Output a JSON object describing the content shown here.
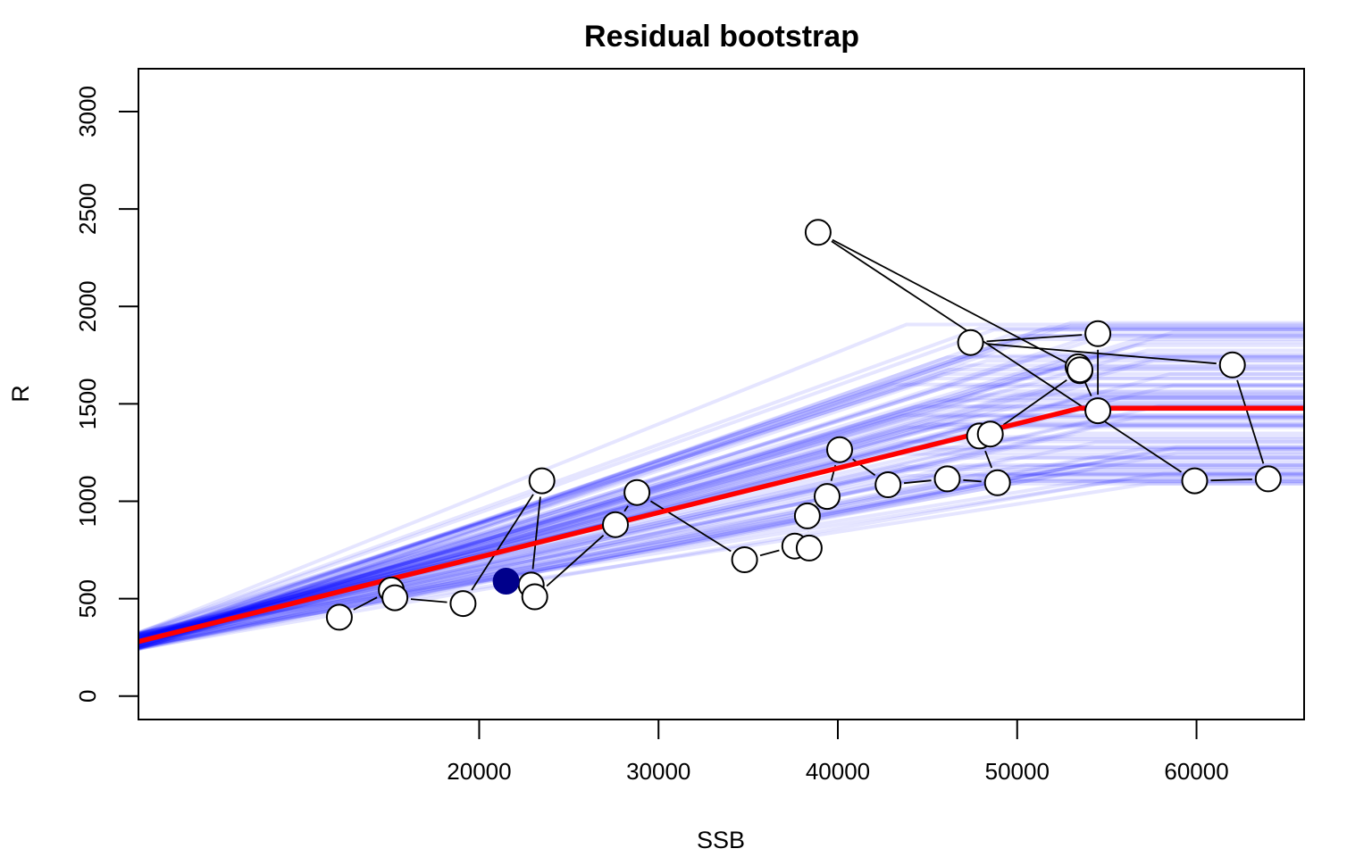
{
  "chart_data": {
    "type": "line",
    "title": "Residual bootstrap",
    "xlabel": "SSB",
    "ylabel": "R",
    "xlim": [
      1000,
      66000
    ],
    "ylim": [
      -120,
      3220
    ],
    "x_ticks": [
      20000,
      30000,
      40000,
      50000,
      60000
    ],
    "y_ticks": [
      0,
      500,
      1000,
      1500,
      2000,
      2500,
      3000
    ],
    "grid": false,
    "legend": "none",
    "colors": {
      "fit": "#ff0000",
      "bootstrap": "#0000ff",
      "observed_line": "#000000",
      "highlight_point": "#00008b"
    },
    "fit_line": {
      "x": [
        1000,
        53500,
        66000
      ],
      "y": [
        280,
        1478,
        1478
      ]
    },
    "bootstrap_breakpoints": {
      "intercept_range": [
        240,
        330
      ],
      "plateau_range": [
        1090,
        1960
      ],
      "breakpoint_x_range": [
        43000,
        59000
      ],
      "count": 100
    },
    "observed": {
      "x": [
        12200,
        15100,
        15300,
        19100,
        23500,
        22900,
        23100,
        27600,
        28800,
        34800,
        37600,
        38400,
        38300,
        39400,
        40100,
        42800,
        46100,
        48900,
        47900,
        48500,
        53500,
        53400,
        54500,
        54500,
        47400,
        62000,
        64000,
        59900,
        38900,
        53500
      ],
      "y": [
        405,
        545,
        505,
        475,
        1105,
        570,
        510,
        880,
        1045,
        700,
        770,
        760,
        925,
        1025,
        1265,
        1085,
        1115,
        1095,
        1335,
        1345,
        1670,
        1690,
        1465,
        1860,
        1815,
        1700,
        1115,
        1105,
        2380,
        1675
      ]
    },
    "highlight_point": {
      "x": 21500,
      "y": 590
    }
  }
}
